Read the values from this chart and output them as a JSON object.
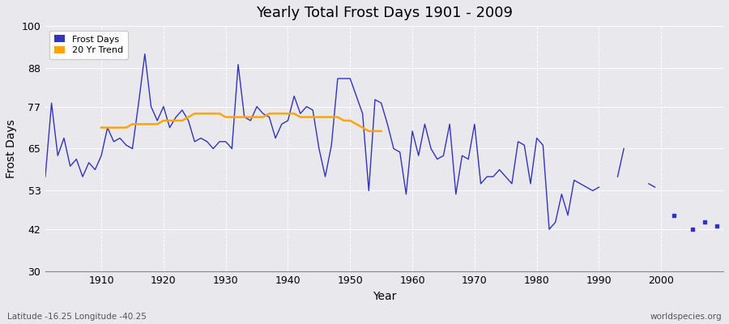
{
  "title": "Yearly Total Frost Days 1901 - 2009",
  "xlabel": "Year",
  "ylabel": "Frost Days",
  "subtitle": "Latitude -16.25 Longitude -40.25",
  "watermark": "worldspecies.org",
  "frost_days": {
    "1901": 57,
    "1902": 78,
    "1903": 63,
    "1904": 68,
    "1905": 60,
    "1906": 62,
    "1907": 57,
    "1908": 61,
    "1909": 59,
    "1910": 63,
    "1911": 71,
    "1912": 67,
    "1913": 68,
    "1914": 66,
    "1915": 65,
    "1916": 78,
    "1917": 92,
    "1918": 77,
    "1919": 73,
    "1920": 77,
    "1921": 71,
    "1922": 74,
    "1923": 76,
    "1924": 73,
    "1925": 67,
    "1926": 68,
    "1927": 67,
    "1928": 65,
    "1929": 67,
    "1930": 67,
    "1931": 65,
    "1932": 89,
    "1933": 74,
    "1934": 73,
    "1935": 77,
    "1936": 75,
    "1937": 74,
    "1938": 68,
    "1939": 72,
    "1940": 73,
    "1941": 80,
    "1942": 75,
    "1943": 77,
    "1944": 76,
    "1945": 65,
    "1946": 57,
    "1947": 66,
    "1948": 85,
    "1949": 85,
    "1950": 85,
    "1951": 80,
    "1952": 75,
    "1953": 53,
    "1954": 79,
    "1955": 78,
    "1956": 72,
    "1957": 65,
    "1958": 64,
    "1959": 52,
    "1960": 70,
    "1961": 63,
    "1962": 72,
    "1963": 65,
    "1964": 62,
    "1965": 63,
    "1966": 72,
    "1967": 52,
    "1968": 63,
    "1969": 62,
    "1970": 72,
    "1971": 55,
    "1972": 57,
    "1973": 57,
    "1974": 59,
    "1975": 57,
    "1976": 55,
    "1977": 67,
    "1978": 66,
    "1979": 55,
    "1980": 68,
    "1981": 66,
    "1982": 42,
    "1983": 44,
    "1984": 52,
    "1985": 46,
    "1986": 56,
    "1987": 55,
    "1988": 54,
    "1989": 53,
    "1990": 54,
    "1991": null,
    "1992": null,
    "1993": 57,
    "1994": 65,
    "1995": null,
    "1996": null,
    "1997": null,
    "1998": 55,
    "1999": 54,
    "2000": null,
    "2001": null,
    "2002": 46,
    "2003": null,
    "2004": null,
    "2005": 42,
    "2006": null,
    "2007": 44,
    "2008": null,
    "2009": 43
  },
  "frost_days_connected": {
    "1901": 57,
    "1902": 78,
    "1903": 63,
    "1904": 68,
    "1905": 60,
    "1906": 62,
    "1907": 57,
    "1908": 61,
    "1909": 59,
    "1910": 63,
    "1911": 71,
    "1912": 67,
    "1913": 68,
    "1914": 66,
    "1915": 65,
    "1916": 78,
    "1917": 92,
    "1918": 77,
    "1919": 73,
    "1920": 77,
    "1921": 71,
    "1922": 74,
    "1923": 76,
    "1924": 73,
    "1925": 67,
    "1926": 68,
    "1927": 67,
    "1928": 65,
    "1929": 67,
    "1930": 67,
    "1931": 65,
    "1932": 89,
    "1933": 74,
    "1934": 73,
    "1935": 77,
    "1936": 75,
    "1937": 74,
    "1938": 68,
    "1939": 72,
    "1940": 73,
    "1941": 80,
    "1942": 75,
    "1943": 77,
    "1944": 76,
    "1945": 65,
    "1946": 57,
    "1947": 66,
    "1948": 85,
    "1949": 85,
    "1950": 85,
    "1951": 80,
    "1952": 75,
    "1953": 53,
    "1954": 79,
    "1955": 78,
    "1956": 72,
    "1957": 65,
    "1958": 64,
    "1959": 52,
    "1960": 70,
    "1961": 63,
    "1962": 72,
    "1963": 65,
    "1964": 62,
    "1965": 63,
    "1966": 72,
    "1967": 52,
    "1968": 63,
    "1969": 62,
    "1970": 72,
    "1971": 55,
    "1972": 57,
    "1973": 57,
    "1974": 59,
    "1975": 57,
    "1976": 55,
    "1977": 67,
    "1978": 66,
    "1979": 55,
    "1980": 68,
    "1981": 66,
    "1982": 42,
    "1983": 44,
    "1984": 52,
    "1985": 46,
    "1986": 56,
    "1987": 55,
    "1988": 54,
    "1989": 53,
    "1990": 54
  },
  "isolated_segments": [
    {
      "years": [
        1993,
        1994
      ],
      "values": [
        57,
        65
      ]
    },
    {
      "years": [
        1998,
        1999
      ],
      "values": [
        55,
        54
      ]
    },
    {
      "years": [
        2002
      ],
      "values": [
        46
      ]
    },
    {
      "years": [
        2005
      ],
      "values": [
        42
      ]
    },
    {
      "years": [
        2007
      ],
      "values": [
        44
      ]
    },
    {
      "years": [
        2009
      ],
      "values": [
        43
      ]
    }
  ],
  "trend_20yr": {
    "1910": 71,
    "1911": 71,
    "1912": 71,
    "1913": 71,
    "1914": 71,
    "1915": 72,
    "1916": 72,
    "1917": 72,
    "1918": 72,
    "1919": 72,
    "1920": 73,
    "1921": 73,
    "1922": 73,
    "1923": 73,
    "1924": 74,
    "1925": 75,
    "1926": 75,
    "1927": 75,
    "1928": 75,
    "1929": 75,
    "1930": 74,
    "1931": 74,
    "1932": 74,
    "1933": 74,
    "1934": 74,
    "1935": 74,
    "1936": 74,
    "1937": 75,
    "1938": 75,
    "1939": 75,
    "1940": 75,
    "1941": 75,
    "1942": 74,
    "1943": 74,
    "1944": 74,
    "1945": 74,
    "1946": 74,
    "1947": 74,
    "1948": 74,
    "1949": 73,
    "1950": 73,
    "1951": 72,
    "1952": 71,
    "1953": 70,
    "1954": 70,
    "1955": 70
  },
  "line_color": "#3333bb",
  "trend_color": "#FFA500",
  "bg_color": "#e8e8ed",
  "grid_color": "#ffffff",
  "ylim": [
    30,
    100
  ],
  "yticks": [
    30,
    42,
    53,
    65,
    77,
    88,
    100
  ],
  "xlim": [
    1901,
    2010
  ],
  "xticks": [
    1910,
    1920,
    1930,
    1940,
    1950,
    1960,
    1970,
    1980,
    1990,
    2000
  ]
}
